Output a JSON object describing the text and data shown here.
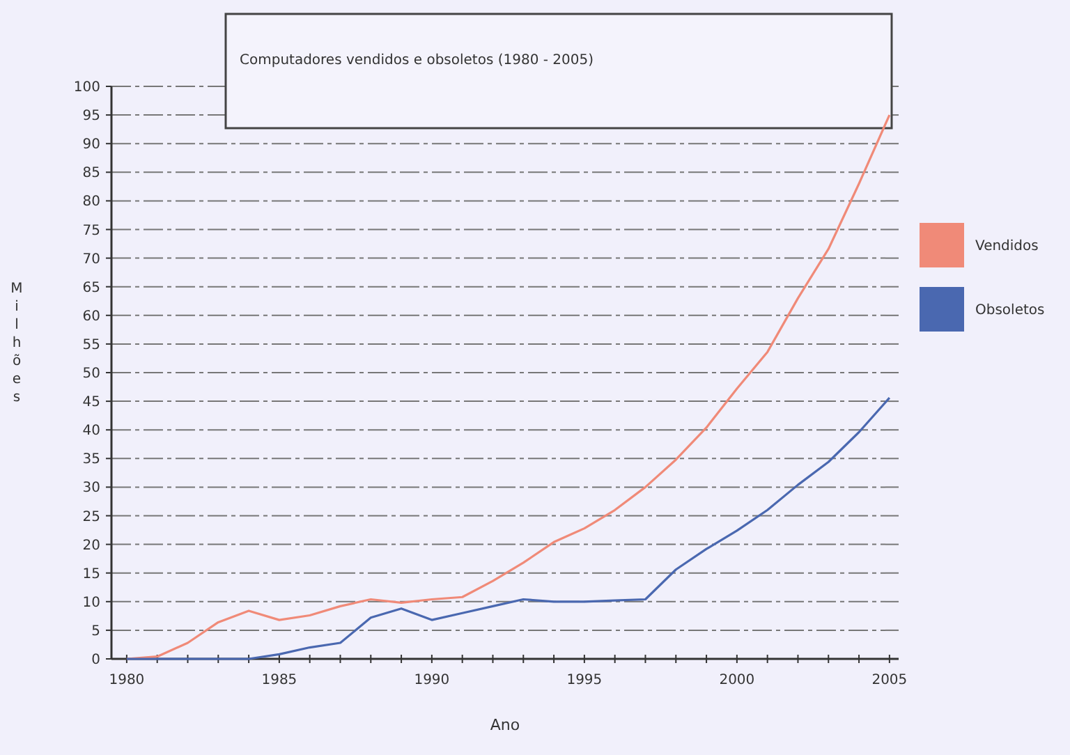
{
  "chart_data": {
    "type": "line",
    "title": "Computadores vendidos e obsoletos (1980 - 2005)",
    "xlabel": "Ano",
    "ylabel": "Milhões",
    "x": [
      1980,
      1981,
      1982,
      1983,
      1984,
      1985,
      1986,
      1987,
      1988,
      1989,
      1990,
      1991,
      1992,
      1993,
      1994,
      1995,
      1996,
      1997,
      1998,
      1999,
      2000,
      2001,
      2002,
      2003,
      2004,
      2005
    ],
    "series": [
      {
        "name": "Vendidos",
        "color": "#f08a78",
        "values": [
          0,
          0.4,
          2.8,
          6.4,
          8.4,
          6.8,
          7.6,
          9.2,
          10.4,
          9.8,
          10.4,
          10.8,
          13.6,
          16.8,
          20.4,
          22.8,
          26,
          30,
          34.8,
          40.4,
          47.2,
          53.6,
          63,
          71.6,
          83,
          95
        ]
      },
      {
        "name": "Obsoletos",
        "color": "#4a68b0",
        "values": [
          0,
          0,
          0,
          0,
          0,
          0.8,
          2,
          2.8,
          7.2,
          8.8,
          6.8,
          8,
          9.2,
          10.4,
          10,
          10,
          10.2,
          10.4,
          15.6,
          19.2,
          22.4,
          26,
          30.4,
          34.4,
          39.6,
          45.6
        ]
      }
    ],
    "xlim": [
      1979.5,
      2005.3
    ],
    "ylim": [
      0,
      100
    ],
    "xticks": [
      1980,
      {
        "value": 1981,
        "label": null
      },
      {
        "value": 1982,
        "label": null
      },
      {
        "value": 1983,
        "label": null
      },
      {
        "value": 1984,
        "label": null
      },
      1985,
      {
        "value": 1986,
        "label": null
      },
      {
        "value": 1987,
        "label": null
      },
      {
        "value": 1988,
        "label": null
      },
      {
        "value": 1989,
        "label": null
      },
      1990,
      {
        "value": 1991,
        "label": null
      },
      {
        "value": 1992,
        "label": null
      },
      {
        "value": 1993,
        "label": null
      },
      {
        "value": 1994,
        "label": null
      },
      1995,
      {
        "value": 1996,
        "label": null
      },
      {
        "value": 1997,
        "label": null
      },
      {
        "value": 1998,
        "label": null
      },
      {
        "value": 1999,
        "label": null
      },
      2000,
      {
        "value": 2001,
        "label": null
      },
      {
        "value": 2002,
        "label": null
      },
      {
        "value": 2003,
        "label": null
      },
      {
        "value": 2004,
        "label": null
      },
      2005
    ],
    "yticks": [
      0,
      5,
      10,
      15,
      20,
      25,
      30,
      35,
      40,
      45,
      50,
      55,
      60,
      65,
      70,
      75,
      80,
      85,
      90,
      95,
      100
    ],
    "grid": "y",
    "legend": "right",
    "marker": "none",
    "line_style": "solid"
  }
}
